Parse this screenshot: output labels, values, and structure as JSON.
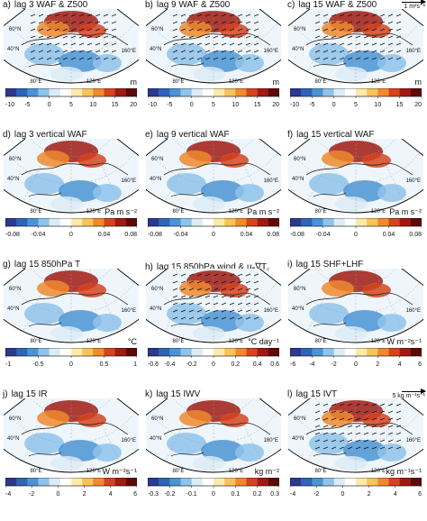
{
  "chart_data": [
    {
      "type": "heatmap",
      "letter": "a)",
      "title": "lag 3  WAF & Z500",
      "unit": "m",
      "colorbar_ticks": [
        "-10",
        "-5",
        "0",
        "5",
        "10",
        "15",
        "20"
      ],
      "clim": [
        -10,
        20
      ],
      "map_labels": [
        "40°N",
        "60°N",
        "80°E",
        "120°E",
        "160°E"
      ],
      "vectors": true,
      "scale_label": ""
    },
    {
      "type": "heatmap",
      "letter": "b)",
      "title": "lag 9  WAF & Z500",
      "unit": "m",
      "colorbar_ticks": [
        "-10",
        "-5",
        "0",
        "5",
        "10",
        "15",
        "20"
      ],
      "clim": [
        -10,
        20
      ],
      "map_labels": [
        "40°N",
        "60°N",
        "80°E",
        "120°E",
        "160°E"
      ],
      "vectors": true,
      "scale_label": ""
    },
    {
      "type": "heatmap",
      "letter": "c)",
      "title": "lag 15  WAF & Z500",
      "unit": "m",
      "colorbar_ticks": [
        "-10",
        "-5",
        "0",
        "5",
        "10",
        "15",
        "20"
      ],
      "clim": [
        -10,
        20
      ],
      "map_labels": [
        "40°N",
        "60°N",
        "80°E",
        "120°E",
        "160°E"
      ],
      "vectors": true,
      "scale_label": "1 m²s⁻²"
    },
    {
      "type": "heatmap",
      "letter": "d)",
      "title": "lag 3  vertical WAF",
      "unit": "Pa m s⁻²",
      "colorbar_ticks": [
        "-0.08",
        "-0.04",
        "0",
        "0.04",
        "0.08"
      ],
      "clim": [
        -0.08,
        0.08
      ],
      "map_labels": [
        "40°N",
        "60°N",
        "80°E",
        "120°E",
        "160°E"
      ],
      "vectors": false,
      "scale_label": ""
    },
    {
      "type": "heatmap",
      "letter": "e)",
      "title": "lag 9  vertical WAF",
      "unit": "Pa m s⁻²",
      "colorbar_ticks": [
        "-0.08",
        "-0.04",
        "0",
        "0.04",
        "0.08"
      ],
      "clim": [
        -0.08,
        0.08
      ],
      "map_labels": [
        "40°N",
        "60°N",
        "80°E",
        "120°E",
        "160°E"
      ],
      "vectors": false,
      "scale_label": ""
    },
    {
      "type": "heatmap",
      "letter": "f)",
      "title": "lag 15  vertical WAF",
      "unit": "Pa m s⁻²",
      "colorbar_ticks": [
        "-0.08",
        "-0.04",
        "0",
        "0.04",
        "0.08"
      ],
      "clim": [
        -0.08,
        0.08
      ],
      "map_labels": [
        "40°N",
        "60°N",
        "80°E",
        "120°E",
        "160°E"
      ],
      "vectors": false,
      "scale_label": ""
    },
    {
      "type": "heatmap",
      "letter": "g)",
      "title": "lag 15  850hPa T",
      "unit": "°C",
      "colorbar_ticks": [
        "-1",
        "-0.5",
        "0",
        "0.5",
        "1"
      ],
      "clim": [
        -1,
        1
      ],
      "map_labels": [
        "40°N",
        "60°N",
        "80°E",
        "120°E",
        "160°E"
      ],
      "vectors": false,
      "scale_label": ""
    },
    {
      "type": "heatmap",
      "letter": "h)",
      "title": "lag 15  850hPa wind & uₐ∇T꜀",
      "unit": "°C day⁻¹",
      "colorbar_ticks": [
        "-0.6",
        "-0.4",
        "-0.2",
        "0",
        "0.2",
        "0.4",
        "0.6"
      ],
      "clim": [
        -0.6,
        0.6
      ],
      "map_labels": [
        "40°N",
        "60°N",
        "80°E",
        "120°E",
        "160°E"
      ],
      "vectors": true,
      "scale_label": ""
    },
    {
      "type": "heatmap",
      "letter": "i)",
      "title": "lag 15  SHF+LHF",
      "unit": "W m⁻²s⁻¹",
      "colorbar_ticks": [
        "-6",
        "-4",
        "-2",
        "0",
        "2",
        "4",
        "6"
      ],
      "clim": [
        -6,
        6
      ],
      "map_labels": [
        "40°N",
        "60°N",
        "80°E",
        "120°E",
        "160°E"
      ],
      "vectors": false,
      "scale_label": ""
    },
    {
      "type": "heatmap",
      "letter": "j)",
      "title": "lag 15  IR",
      "unit": "W m⁻²s⁻¹",
      "colorbar_ticks": [
        "-4",
        "-2",
        "0",
        "2",
        "4",
        "6"
      ],
      "clim": [
        -4,
        6
      ],
      "map_labels": [
        "40°N",
        "60°N",
        "80°E",
        "120°E",
        "160°E"
      ],
      "vectors": false,
      "scale_label": ""
    },
    {
      "type": "heatmap",
      "letter": "k)",
      "title": "lag 15  IWV",
      "unit": "kg m⁻²",
      "colorbar_ticks": [
        "-0.3",
        "-0.2",
        "-0.1",
        "0",
        "0.1",
        "0.2",
        "0.3"
      ],
      "clim": [
        -0.3,
        0.3
      ],
      "map_labels": [
        "40°N",
        "60°N",
        "80°E",
        "120°E",
        "160°E"
      ],
      "vectors": false,
      "scale_label": ""
    },
    {
      "type": "heatmap",
      "letter": "l)",
      "title": "lag 15  IVT",
      "unit": "kg m⁻¹s⁻¹",
      "colorbar_ticks": [
        "-4",
        "-2",
        "0",
        "2",
        "4",
        "6"
      ],
      "clim": [
        -4,
        6
      ],
      "map_labels": [
        "40°N",
        "60°N",
        "80°E",
        "120°E",
        "160°E"
      ],
      "vectors": true,
      "scale_label": "5 kg m⁻¹s⁻¹"
    }
  ],
  "colormap": [
    "#2b3a8f",
    "#2f64b8",
    "#4a94d4",
    "#8fc3ea",
    "#dcebf4",
    "#ffffff",
    "#fdeaa8",
    "#f9c35b",
    "#f08a2c",
    "#d6431f",
    "#a11a12",
    "#5e0a08"
  ]
}
